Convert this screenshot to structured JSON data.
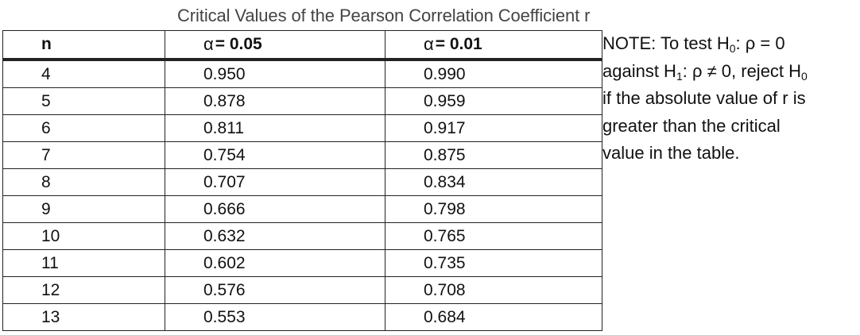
{
  "title": "Critical Values of the Pearson Correlation Coefficient r",
  "table": {
    "headers": [
      "n",
      "α = 0.05",
      "α = 0.01"
    ],
    "header_parts": {
      "col1_symbol": "α",
      "col1_value": "= 0.05",
      "col2_symbol": "α",
      "col2_value": "= 0.01"
    },
    "rows": [
      {
        "n": "4",
        "a05": "0.950",
        "a01": "0.990"
      },
      {
        "n": "5",
        "a05": "0.878",
        "a01": "0.959"
      },
      {
        "n": "6",
        "a05": "0.811",
        "a01": "0.917"
      },
      {
        "n": "7",
        "a05": "0.754",
        "a01": "0.875"
      },
      {
        "n": "8",
        "a05": "0.707",
        "a01": "0.834"
      },
      {
        "n": "9",
        "a05": "0.666",
        "a01": "0.798"
      },
      {
        "n": "10",
        "a05": "0.632",
        "a01": "0.765"
      },
      {
        "n": "11",
        "a05": "0.602",
        "a01": "0.735"
      },
      {
        "n": "12",
        "a05": "0.576",
        "a01": "0.708"
      },
      {
        "n": "13",
        "a05": "0.553",
        "a01": "0.684"
      }
    ]
  },
  "note": {
    "line1_prefix": "NOTE: To test H",
    "line1_sub": "0",
    "line1_suffix": ": ρ = 0",
    "line2_prefix": "against H",
    "line2_sub1": "1",
    "line2_mid": ": ρ ≠ 0, reject H",
    "line2_sub2": "0",
    "line3": "if the absolute value of r is",
    "line4": "greater than the critical",
    "line5": "value in the table."
  }
}
